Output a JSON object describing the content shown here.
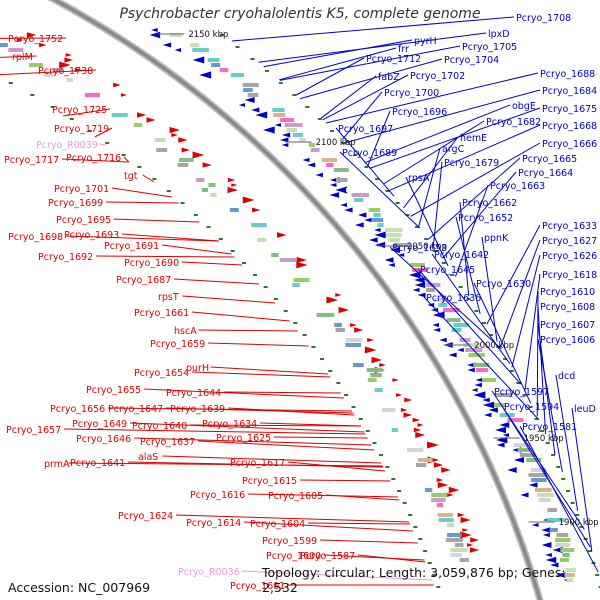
{
  "title": "Psychrobacter cryohalolentis K5, complete genome",
  "footer": {
    "accession": "Accession: NC_007969",
    "summary": "Topology: circular; Length: 3,059,876 bp; Genes: 2,532"
  },
  "colors": {
    "left_gene": "#dd0000",
    "left_rna": "#ee99dd",
    "right_gene": "#0000cc",
    "backbone": "#8a8a8a",
    "tick": "#2a7a2a"
  },
  "position_labels": [
    "2150 kbp",
    "2100 kbp",
    "2050 kbp",
    "2000 kbp",
    "1950 kbp",
    "1900 kbp"
  ],
  "left_labels": [
    "Pcryo_1752",
    "rplM",
    "Pcryo_1738",
    "Pcryo_1725",
    "Pcryo_1719",
    "Pcryo_R0039",
    "Pcryo_1717",
    "Pcryo_1716",
    "tgt",
    "Pcryo_1701",
    "Pcryo_1699",
    "Pcryo_1695",
    "Pcryo_1698",
    "Pcryo_1693",
    "Pcryo_1691",
    "Pcryo_1692",
    "Pcryo_1690",
    "Pcryo_1687",
    "rpsT",
    "Pcryo_1661",
    "hscA",
    "Pcryo_1659",
    "Pcryo_1654",
    "purH",
    "Pcryo_1655",
    "Pcryo_1644",
    "Pcryo_1656",
    "Pcryo_1647",
    "Pcryo_1639",
    "Pcryo_1649",
    "Pcryo_1640",
    "Pcryo_1634",
    "Pcryo_1657",
    "Pcryo_1646",
    "Pcryo_1637",
    "Pcryo_1625",
    "prmA",
    "Pcryo_1641",
    "alaS",
    "Pcryo_1617",
    "Pcryo_1615",
    "Pcryo_1616",
    "Pcryo_1605",
    "Pcryo_1624",
    "Pcryo_1614",
    "Pcryo_1604",
    "Pcryo_1599",
    "Pcryo_1600",
    "Pcryo_1587",
    "Pcryo_R0036",
    "Pcryo_1601"
  ],
  "right_labels": [
    "Pcryo_1708",
    "pyrH",
    "lpxD",
    "frr",
    "Pcryo_1705",
    "Pcryo_1712",
    "Pcryo_1704",
    "fabZ",
    "Pcryo_1702",
    "Pcryo_1700",
    "Pcryo_1688",
    "Pcryo_1684",
    "Pcryo_1696",
    "obgE",
    "Pcryo_1675",
    "Pcryo_1682",
    "Pcryo_1668",
    "Pcryo_1697",
    "hemE",
    "Pcryo_1666",
    "Pcryo_1689",
    "argC",
    "Pcryo_1665",
    "Pcryo_1679",
    "Pcryo_1664",
    "rpsA",
    "Pcryo_1663",
    "Pcryo_1662",
    "Pcryo_1652",
    "Pcryo_1633",
    "Pcryo_1653",
    "ppnK",
    "Pcryo_1627",
    "Pcryo_1642",
    "Pcryo_1626",
    "Pcryo_1645",
    "Pcryo_1618",
    "Pcryo_1630",
    "Pcryo_1636",
    "Pcryo_1610",
    "Pcryo_1608",
    "Pcryo_1607",
    "Pcryo_1606",
    "dcd",
    "Pcryo_1597",
    "Pcryo_1594",
    "leuD",
    "Pcryo_1581"
  ]
}
